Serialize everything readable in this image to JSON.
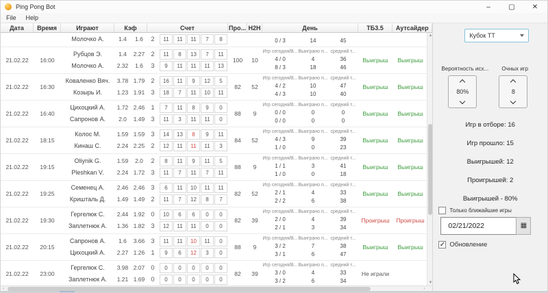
{
  "window": {
    "title": "Ping Pong Bot",
    "menu": {
      "file": "File",
      "help": "Help"
    },
    "controls": {
      "minimize": "–",
      "maximize": "▢",
      "close": "✕"
    }
  },
  "colors": {
    "green": "#3b9c3b",
    "red": "#cf4a44",
    "accent_border": "#85c3da"
  },
  "table": {
    "headers": {
      "date": "Дата",
      "time": "Время",
      "players": "Играют",
      "kf": "Кэф",
      "score": "Счет",
      "pro": "Про...",
      "h2h": "H2H",
      "day": "День",
      "tb35": "ТБ3.5",
      "outsider": "Аутсайдер"
    },
    "day_subheaders": [
      "Игр сегодня/В...",
      "Выиграно п...",
      "средний т..."
    ],
    "rows": [
      {
        "partial": true,
        "date": "",
        "time": "",
        "pro": "",
        "h2h": "",
        "players": [
          {
            "name": "",
            "kf1": "",
            "kf2": "",
            "kf2_color": "",
            "sets": "",
            "scores": [
              "",
              "",
              "",
              "",
              ""
            ],
            "score_red": -1,
            "day": [
              "",
              "",
              ""
            ]
          },
          {
            "name": "Молочко А.",
            "kf1": "1.4",
            "kf2": "1.6",
            "kf2_color": "red",
            "sets": "2",
            "scores": [
              "11",
              "11",
              "11",
              "7",
              "8"
            ],
            "score_red": -1,
            "day": [
              "0 / 3",
              "14",
              "45"
            ]
          }
        ],
        "tb35": {
          "text": "",
          "color": "gray"
        },
        "outsider": {
          "text": "",
          "color": "gray"
        }
      },
      {
        "partial": false,
        "date": "21.02.22",
        "time": "16:00",
        "pro": "100",
        "h2h": "10",
        "players": [
          {
            "name": "Рубцов Э.",
            "kf1": "1.4",
            "kf2": "2.27",
            "kf2_color": "red",
            "sets": "2",
            "scores": [
              "11",
              "8",
              "13",
              "7",
              "11"
            ],
            "score_red": -1,
            "day": [
              "4 / 0",
              "4",
              "36"
            ]
          },
          {
            "name": "Молочко А.",
            "kf1": "2.32",
            "kf2": "1.6",
            "kf2_color": "green",
            "sets": "3",
            "scores": [
              "9",
              "11",
              "11",
              "11",
              "13"
            ],
            "score_red": -1,
            "day": [
              "8 / 3",
              "18",
              "46"
            ]
          }
        ],
        "tb35": {
          "text": "Выигрыш",
          "color": "green"
        },
        "outsider": {
          "text": "Выигрыш",
          "color": "green"
        }
      },
      {
        "partial": false,
        "date": "21.02.22",
        "time": "16:30",
        "pro": "82",
        "h2h": "52",
        "players": [
          {
            "name": "Коваленко Вяч.",
            "kf1": "3.78",
            "kf2": "1.79",
            "kf2_color": "green",
            "sets": "2",
            "scores": [
              "16",
              "11",
              "9",
              "12",
              "5"
            ],
            "score_red": -1,
            "day": [
              "4 / 2",
              "10",
              "47"
            ]
          },
          {
            "name": "Козырь И.",
            "kf1": "1.23",
            "kf2": "1.91",
            "kf2_color": "red",
            "sets": "3",
            "scores": [
              "18",
              "7",
              "11",
              "10",
              "11"
            ],
            "score_red": -1,
            "day": [
              "4 / 3",
              "10",
              "40"
            ]
          }
        ],
        "tb35": {
          "text": "Выигрыш",
          "color": "green"
        },
        "outsider": {
          "text": "Выигрыш",
          "color": "green"
        }
      },
      {
        "partial": false,
        "date": "21.02.22",
        "time": "16:40",
        "pro": "88",
        "h2h": "9",
        "players": [
          {
            "name": "Цихоцкий А.",
            "kf1": "1.72",
            "kf2": "2.46",
            "kf2_color": "red",
            "sets": "1",
            "scores": [
              "7",
              "11",
              "8",
              "9",
              "0"
            ],
            "score_red": -1,
            "day": [
              "0 / 0",
              "0",
              "0"
            ]
          },
          {
            "name": "Сапронов А.",
            "kf1": "2.0",
            "kf2": "1.49",
            "kf2_color": "green",
            "sets": "3",
            "scores": [
              "11",
              "3",
              "11",
              "11",
              "0"
            ],
            "score_red": -1,
            "day": [
              "0 / 0",
              "0",
              "0"
            ]
          }
        ],
        "tb35": {
          "text": "Выигрыш",
          "color": "green"
        },
        "outsider": {
          "text": "Выигрыш",
          "color": "green"
        }
      },
      {
        "partial": false,
        "date": "21.02.22",
        "time": "18:15",
        "pro": "84",
        "h2h": "52",
        "players": [
          {
            "name": "Колос М.",
            "kf1": "1.59",
            "kf2": "1.59",
            "kf2_color": "",
            "sets": "3",
            "scores": [
              "14",
              "13",
              "8",
              "9",
              "11"
            ],
            "score_red": 2,
            "day": [
              "4 / 3",
              "9",
              "39"
            ]
          },
          {
            "name": "Кинаш С.",
            "kf1": "2.24",
            "kf2": "2.25",
            "kf2_color": "red",
            "sets": "2",
            "scores": [
              "12",
              "11",
              "11",
              "11",
              "3"
            ],
            "score_red": 2,
            "day": [
              "1 / 0",
              "0",
              "23"
            ]
          }
        ],
        "tb35": {
          "text": "Выигрыш",
          "color": "green"
        },
        "outsider": {
          "text": "Выигрыш",
          "color": "green"
        }
      },
      {
        "partial": false,
        "date": "21.02.22",
        "time": "19:15",
        "pro": "88",
        "h2h": "9",
        "players": [
          {
            "name": "Oliynik G.",
            "kf1": "1.59",
            "kf2": "2.0",
            "kf2_color": "red",
            "sets": "2",
            "scores": [
              "8",
              "11",
              "9",
              "11",
              "5"
            ],
            "score_red": -1,
            "day": [
              "1 / 1",
              "3",
              "41"
            ]
          },
          {
            "name": "Pleshkan V.",
            "kf1": "2.24",
            "kf2": "1.72",
            "kf2_color": "green",
            "sets": "3",
            "scores": [
              "11",
              "7",
              "11",
              "7",
              "11"
            ],
            "score_red": -1,
            "day": [
              "1 / 0",
              "0",
              "18"
            ]
          }
        ],
        "tb35": {
          "text": "Выигрыш",
          "color": "green"
        },
        "outsider": {
          "text": "Выигрыш",
          "color": "green"
        }
      },
      {
        "partial": false,
        "date": "21.02.22",
        "time": "19:25",
        "pro": "82",
        "h2h": "52",
        "players": [
          {
            "name": "Семенец А.",
            "kf1": "2.46",
            "kf2": "2.46",
            "kf2_color": "",
            "sets": "3",
            "scores": [
              "6",
              "11",
              "10",
              "11",
              "11"
            ],
            "score_red": -1,
            "day": [
              "2 / 1",
              "4",
              "33"
            ]
          },
          {
            "name": "Кришталь Д.",
            "kf1": "1.49",
            "kf2": "1.49",
            "kf2_color": "",
            "sets": "2",
            "scores": [
              "11",
              "7",
              "12",
              "8",
              "7"
            ],
            "score_red": -1,
            "day": [
              "2 / 2",
              "6",
              "38"
            ]
          }
        ],
        "tb35": {
          "text": "Выигрыш",
          "color": "green"
        },
        "outsider": {
          "text": "Выигрыш",
          "color": "green"
        }
      },
      {
        "partial": false,
        "date": "21.02.22",
        "time": "19:30",
        "pro": "82",
        "h2h": "39",
        "players": [
          {
            "name": "Гергелюк С.",
            "kf1": "2.44",
            "kf2": "1.92",
            "kf2_color": "green",
            "sets": "0",
            "scores": [
              "10",
              "6",
              "6",
              "0",
              "0"
            ],
            "score_red": -1,
            "day": [
              "2 / 0",
              "4",
              "39"
            ]
          },
          {
            "name": "Заплетнюк А.",
            "kf1": "1.36",
            "kf2": "1.82",
            "kf2_color": "red",
            "sets": "3",
            "scores": [
              "12",
              "11",
              "11",
              "0",
              "0"
            ],
            "score_red": -1,
            "day": [
              "2 / 1",
              "3",
              "34"
            ]
          }
        ],
        "tb35": {
          "text": "Проигрыш",
          "color": "red"
        },
        "outsider": {
          "text": "Проигрыш",
          "color": "red"
        }
      },
      {
        "partial": false,
        "date": "21.02.22",
        "time": "20:15",
        "pro": "88",
        "h2h": "9",
        "players": [
          {
            "name": "Сапронов А.",
            "kf1": "1.6",
            "kf2": "3.66",
            "kf2_color": "red",
            "sets": "3",
            "scores": [
              "11",
              "11",
              "10",
              "11",
              "0"
            ],
            "score_red": 2,
            "day": [
              "3 / 2",
              "7",
              "38"
            ]
          },
          {
            "name": "Цихоцкий А.",
            "kf1": "2.27",
            "kf2": "1.26",
            "kf2_color": "green",
            "sets": "1",
            "scores": [
              "9",
              "6",
              "12",
              "3",
              "0"
            ],
            "score_red": 2,
            "day": [
              "3 / 1",
              "6",
              "47"
            ]
          }
        ],
        "tb35": {
          "text": "Выигрыш",
          "color": "green"
        },
        "outsider": {
          "text": "Выигрыш",
          "color": "green"
        }
      },
      {
        "partial": false,
        "date": "21.02.22",
        "time": "23:00",
        "pro": "82",
        "h2h": "39",
        "players": [
          {
            "name": "Гергелюк С.",
            "kf1": "3.98",
            "kf2": "2.07",
            "kf2_color": "green",
            "sets": "0",
            "scores": [
              "0",
              "0",
              "0",
              "0",
              "0"
            ],
            "score_red": -1,
            "day": [
              "3 / 0",
              "4",
              "33"
            ]
          },
          {
            "name": "Заплетнюк А.",
            "kf1": "1.21",
            "kf2": "1.69",
            "kf2_color": "red",
            "sets": "0",
            "scores": [
              "0",
              "0",
              "0",
              "0",
              "0"
            ],
            "score_red": -1,
            "day": [
              "3 / 2",
              "6",
              "34"
            ]
          }
        ],
        "tb35": {
          "text": "Не играли",
          "color": "gray"
        },
        "outsider": {
          "text": "",
          "color": "gray"
        }
      }
    ]
  },
  "panel": {
    "league_select": "Кубок ТТ",
    "probability_label": "Вероятность исх...",
    "probability_value": "80%",
    "head_to_head_label": "Очных игр",
    "head_to_head_value": "8",
    "stats": {
      "selected": "Игр в отборе: 16",
      "played": "Игр прошло: 15",
      "wins": "Выигрышей: 12",
      "losses": "Проигрышей: 2",
      "win_rate": "Выигрышей - 80%"
    },
    "nearest_games_label": "Только ближайшие игры",
    "nearest_games_checked": false,
    "date_value": "02/21/2022",
    "update_label": "Обновление",
    "update_checked": true,
    "update_checkmark": "✓"
  }
}
